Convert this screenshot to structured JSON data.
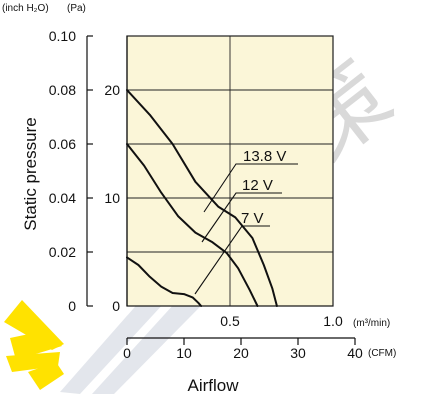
{
  "chart_data": {
    "type": "line",
    "title": "",
    "xlabel": "Airflow",
    "ylabel": "Static pressure",
    "units": {
      "left_outer": "(inch H₂O)",
      "left_inner": "(Pa)",
      "x_top": "(m³/min)",
      "x_bottom": "(CFM)"
    },
    "ticks": {
      "inch_h2o": [
        "0",
        "0.02",
        "0.04",
        "0.06",
        "0.08",
        "0.10"
      ],
      "pa": [
        "0",
        "10",
        "20"
      ],
      "m3_per_min": [
        "0.5",
        "1.0"
      ],
      "cfm": [
        "0",
        "10",
        "20",
        "30",
        "40"
      ]
    },
    "axis_ranges": {
      "x_cfm": [
        0,
        40
      ],
      "x_m3_per_min": [
        0,
        1.0
      ],
      "y_pa": [
        0,
        25
      ],
      "y_inch_h2o": [
        0,
        0.1
      ]
    },
    "grid": true,
    "background": "#fbf6d8",
    "curve_color": "#111111",
    "series": [
      {
        "name": "13.8 V",
        "x_cfm": [
          0,
          4,
          8,
          12,
          16,
          19,
          22,
          24,
          25.5,
          26.3
        ],
        "y_pa": [
          20,
          17.7,
          15,
          11.5,
          9.2,
          8.2,
          6.3,
          3.8,
          1.6,
          0
        ]
      },
      {
        "name": "12 V",
        "x_cfm": [
          0,
          3,
          6,
          9,
          12,
          15,
          17.5,
          19.5,
          21.5,
          22.9
        ],
        "y_pa": [
          15,
          13,
          10.5,
          8.3,
          6.8,
          5.9,
          4.9,
          3.5,
          1.5,
          0
        ]
      },
      {
        "name": "7 V",
        "x_cfm": [
          0,
          2,
          4,
          6,
          8,
          10,
          11.5,
          12.5,
          13
        ],
        "y_pa": [
          4.5,
          3.8,
          2.7,
          1.8,
          1.2,
          1.1,
          0.8,
          0.3,
          0
        ]
      }
    ],
    "labels": [
      "13.8 V",
      "12 V",
      "7 V"
    ],
    "watermark": "健策"
  }
}
